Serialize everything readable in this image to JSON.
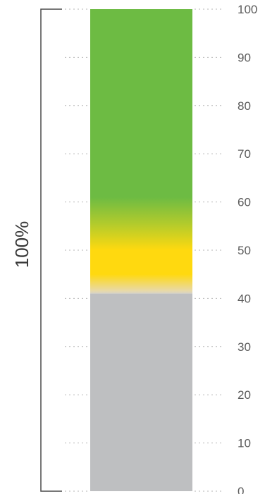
{
  "chart_data": {
    "type": "bar",
    "yticks": [
      0,
      10,
      20,
      30,
      40,
      50,
      60,
      70,
      80,
      90,
      100
    ],
    "ylim": [
      0,
      100
    ],
    "grid": true,
    "bracket_label": "100%",
    "segments": [
      {
        "from": 0,
        "to": 41,
        "color": "#bebfc1"
      },
      {
        "from": 41,
        "to": 100,
        "color": "#6dbb43",
        "highlight_center": 48,
        "highlight_color": "#ffd90f"
      }
    ]
  }
}
